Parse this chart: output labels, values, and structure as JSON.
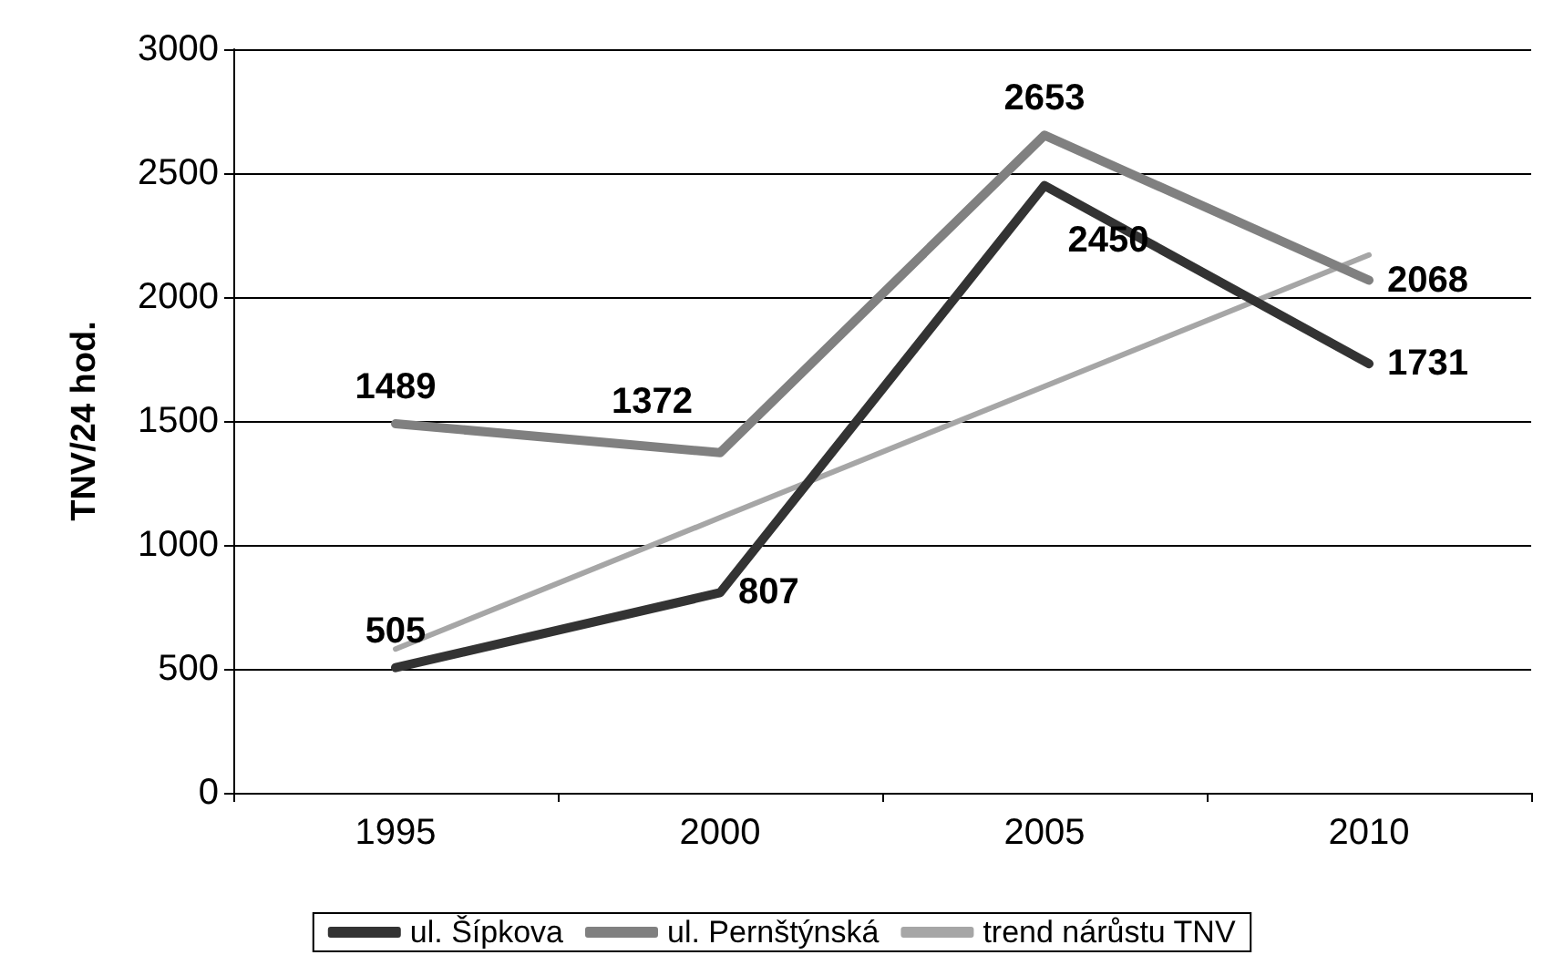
{
  "chart_data": {
    "type": "line",
    "ylabel": "TNV/24 hod.",
    "categories": [
      "1995",
      "2000",
      "2005",
      "2010"
    ],
    "series": [
      {
        "name": "ul. Šípkova",
        "color": "#333333",
        "values": [
          505,
          807,
          2450,
          1731
        ],
        "value_labels": [
          "505",
          "807",
          "2450",
          "1731"
        ]
      },
      {
        "name": "ul. Pernštýnská",
        "color": "#808080",
        "values": [
          1489,
          1372,
          2653,
          2068
        ],
        "value_labels": [
          "1489",
          "1372",
          "2653",
          "2068"
        ]
      },
      {
        "name": "trend nárůstu TNV",
        "color": "#a6a6a6",
        "values": [
          580,
          1110,
          1640,
          2170
        ]
      }
    ],
    "ylim": [
      0,
      3000
    ],
    "yticks": [
      0,
      500,
      1000,
      1500,
      2000,
      2500,
      3000
    ],
    "grid": "y",
    "legend": "bottom",
    "marker": "none",
    "line_style": "solid"
  }
}
